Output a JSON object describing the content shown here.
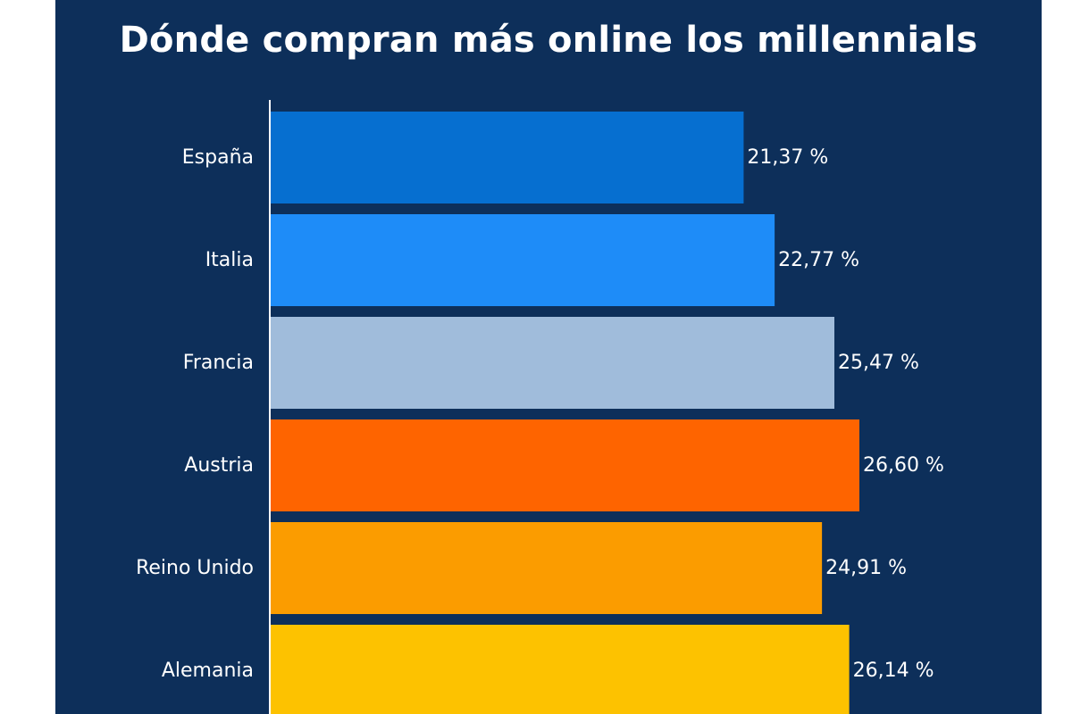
{
  "chart_data": {
    "type": "bar",
    "orientation": "horizontal",
    "title": "Dónde compran más online los millennials",
    "categories": [
      "España",
      "Italia",
      "Francia",
      "Austria",
      "Reino Unido",
      "Alemania"
    ],
    "values": [
      21.37,
      22.77,
      25.47,
      26.6,
      24.91,
      26.14
    ],
    "value_labels": [
      "21,37 %",
      "22,77 %",
      "25,47 %",
      "26,60 %",
      "24,91 %",
      "26,14 %"
    ],
    "bar_colors": [
      "#066fd0",
      "#1e8cf8",
      "#a0bcdb",
      "#fe6400",
      "#fb9c00",
      "#fdc200"
    ],
    "unit": "%",
    "xlim": [
      0,
      26.6
    ],
    "grid": false,
    "legend": "none"
  },
  "colors": {
    "background": "#0d2f5a",
    "axis": "#ffffff",
    "text": "#ffffff"
  }
}
